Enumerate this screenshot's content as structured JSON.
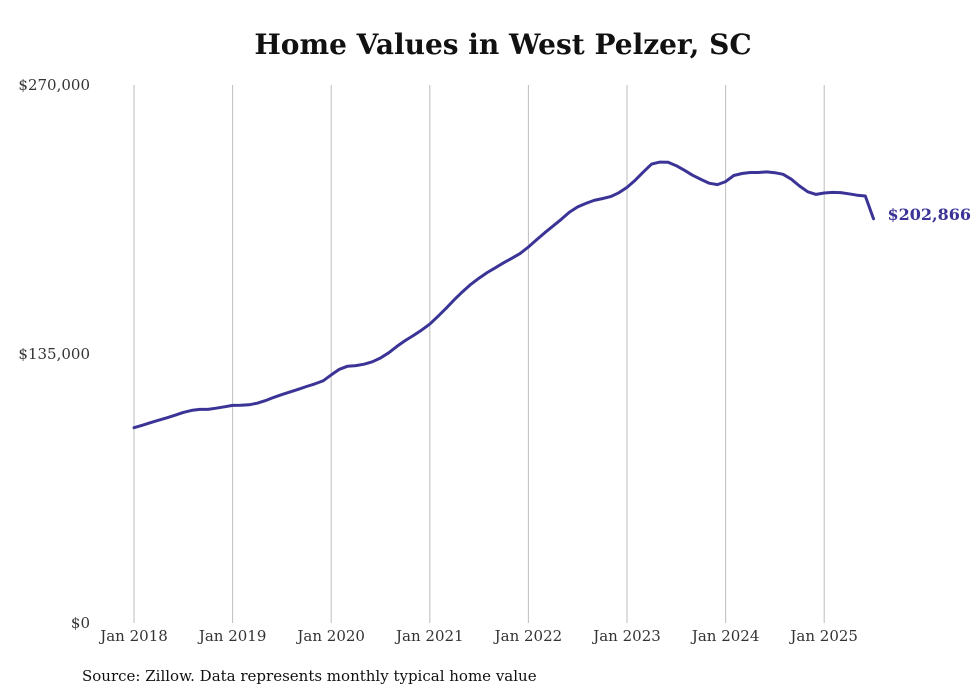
{
  "chart_data": {
    "type": "line",
    "title": "Home Values in West Pelzer, SC",
    "xlabel": "",
    "ylabel": "",
    "ylim": [
      0,
      270000
    ],
    "y_ticks": [
      "$270,000",
      "$135,000",
      "$0"
    ],
    "y_tick_values": [
      270000,
      135000,
      0
    ],
    "x_ticks": [
      "Jan 2018",
      "Jan 2019",
      "Jan 2020",
      "Jan 2021",
      "Jan 2022",
      "Jan 2023",
      "Jan 2024",
      "Jan 2025"
    ],
    "grid": "vertical",
    "line_color": "#3b3496",
    "last_value_label": "$202,866",
    "series": [
      {
        "x": [
          "2018-01",
          "2018-02",
          "2018-03",
          "2018-04",
          "2018-05",
          "2018-06",
          "2018-07",
          "2018-08",
          "2018-09",
          "2018-10",
          "2018-11",
          "2018-12",
          "2019-01",
          "2019-02",
          "2019-03",
          "2019-04",
          "2019-05",
          "2019-06",
          "2019-07",
          "2019-08",
          "2019-09",
          "2019-10",
          "2019-11",
          "2019-12",
          "2020-01",
          "2020-02",
          "2020-03",
          "2020-04",
          "2020-05",
          "2020-06",
          "2020-07",
          "2020-08",
          "2020-09",
          "2020-10",
          "2020-11",
          "2020-12",
          "2021-01",
          "2021-02",
          "2021-03",
          "2021-04",
          "2021-05",
          "2021-06",
          "2021-07",
          "2021-08",
          "2021-09",
          "2021-10",
          "2021-11",
          "2021-12",
          "2022-01",
          "2022-02",
          "2022-03",
          "2022-04",
          "2022-05",
          "2022-06",
          "2022-07",
          "2022-08",
          "2022-09",
          "2022-10",
          "2022-11",
          "2022-12",
          "2023-01",
          "2023-02",
          "2023-03",
          "2023-04",
          "2023-05",
          "2023-06",
          "2023-07",
          "2023-08",
          "2023-09",
          "2023-10",
          "2023-11",
          "2023-12",
          "2024-01",
          "2024-02",
          "2024-03",
          "2024-04",
          "2024-05",
          "2024-06",
          "2024-07",
          "2024-08",
          "2024-09",
          "2024-10",
          "2024-11",
          "2024-12",
          "2025-01",
          "2025-02",
          "2025-03",
          "2025-04",
          "2025-05",
          "2025-06",
          "2025-07"
        ],
        "values": [
          98000,
          99200,
          100500,
          101800,
          103000,
          104300,
          105700,
          106700,
          107200,
          107200,
          107800,
          108500,
          109200,
          109300,
          109500,
          110300,
          111600,
          113200,
          114600,
          116000,
          117300,
          118700,
          120000,
          121500,
          124500,
          127300,
          128900,
          129200,
          129900,
          131100,
          133000,
          135600,
          138800,
          141700,
          144300,
          147000,
          150000,
          153900,
          158000,
          162300,
          166300,
          170000,
          173100,
          175900,
          178300,
          180800,
          183100,
          185500,
          188700,
          192300,
          195900,
          199200,
          202600,
          206200,
          208800,
          210600,
          212100,
          213000,
          214000,
          215900,
          218600,
          222200,
          226400,
          230300,
          231300,
          231200,
          229500,
          227200,
          224700,
          222600,
          220700,
          220000,
          221500,
          224600,
          225600,
          226100,
          226100,
          226400,
          226000,
          225200,
          222700,
          219300,
          216400,
          215100,
          215800,
          216100,
          216000,
          215400,
          214700,
          214300,
          202866
        ]
      }
    ]
  },
  "source_text": "Source: Zillow. Data represents monthly typical home value"
}
